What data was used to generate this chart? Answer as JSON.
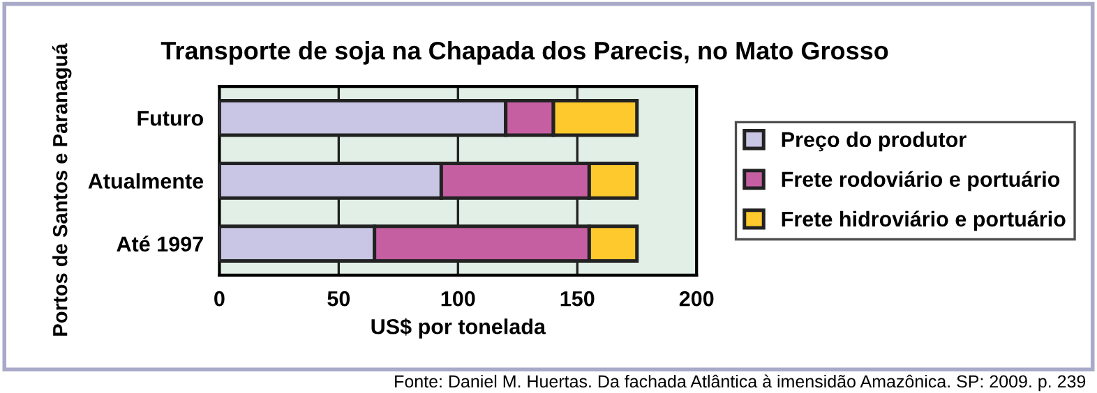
{
  "chart_data": {
    "type": "bar",
    "orientation": "horizontal",
    "stacked": true,
    "title": "Transporte de soja na Chapada dos Parecis, no Mato Grosso",
    "xlabel": "US$ por tonelada",
    "ylabel": "Portos de Santos e Paranaguá",
    "categories": [
      "Futuro",
      "Atualmente",
      "Até 1997"
    ],
    "series": [
      {
        "name": "Preço do produtor",
        "color": "#c8c6e4",
        "values": [
          120,
          93,
          65
        ]
      },
      {
        "name": "Frete rodoviário e portuário",
        "color": "#c55fa2",
        "values": [
          20,
          62,
          90
        ]
      },
      {
        "name": "Frete hidroviário e portuário",
        "color": "#fdc92c",
        "values": [
          35,
          20,
          20
        ]
      }
    ],
    "xlim": [
      0,
      200
    ],
    "xticks": [
      0,
      50,
      100,
      150,
      200
    ],
    "grid": "x",
    "legend": "right",
    "annotations": [
      "Fonte: Daniel M. Huertas. Da fachada Atlântica à imensidão Amazônica. SP: 2009. p. 239"
    ]
  }
}
